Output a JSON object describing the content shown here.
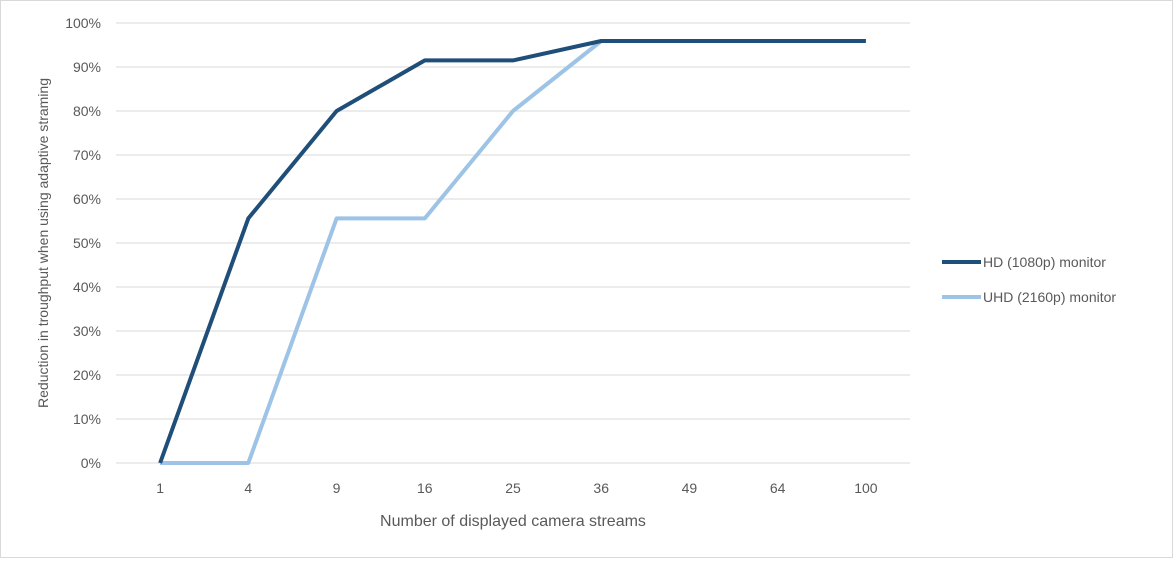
{
  "chart_data": {
    "type": "line",
    "title": "",
    "xlabel": "Number of displayed camera streams",
    "ylabel": "Reduction in  troughput  when using adaptive straming",
    "categories": [
      "1",
      "4",
      "9",
      "16",
      "25",
      "36",
      "49",
      "64",
      "100"
    ],
    "ylim": [
      0,
      100
    ],
    "yticks": [
      0,
      10,
      20,
      30,
      40,
      50,
      60,
      70,
      80,
      90,
      100
    ],
    "ytick_labels": [
      "0%",
      "10%",
      "20%",
      "30%",
      "40%",
      "50%",
      "60%",
      "70%",
      "80%",
      "90%",
      "100%"
    ],
    "grid": true,
    "legend_position": "right",
    "series": [
      {
        "name": "HD (1080p) monitor",
        "color": "#1f4e79",
        "values": [
          0,
          55.6,
          80,
          91.5,
          91.5,
          95.9,
          95.9,
          95.9,
          95.9
        ]
      },
      {
        "name": "UHD (2160p) monitor",
        "color": "#9dc3e6",
        "values": [
          0,
          0,
          55.6,
          55.6,
          80,
          95.9,
          95.9,
          95.9,
          95.9
        ]
      }
    ]
  }
}
